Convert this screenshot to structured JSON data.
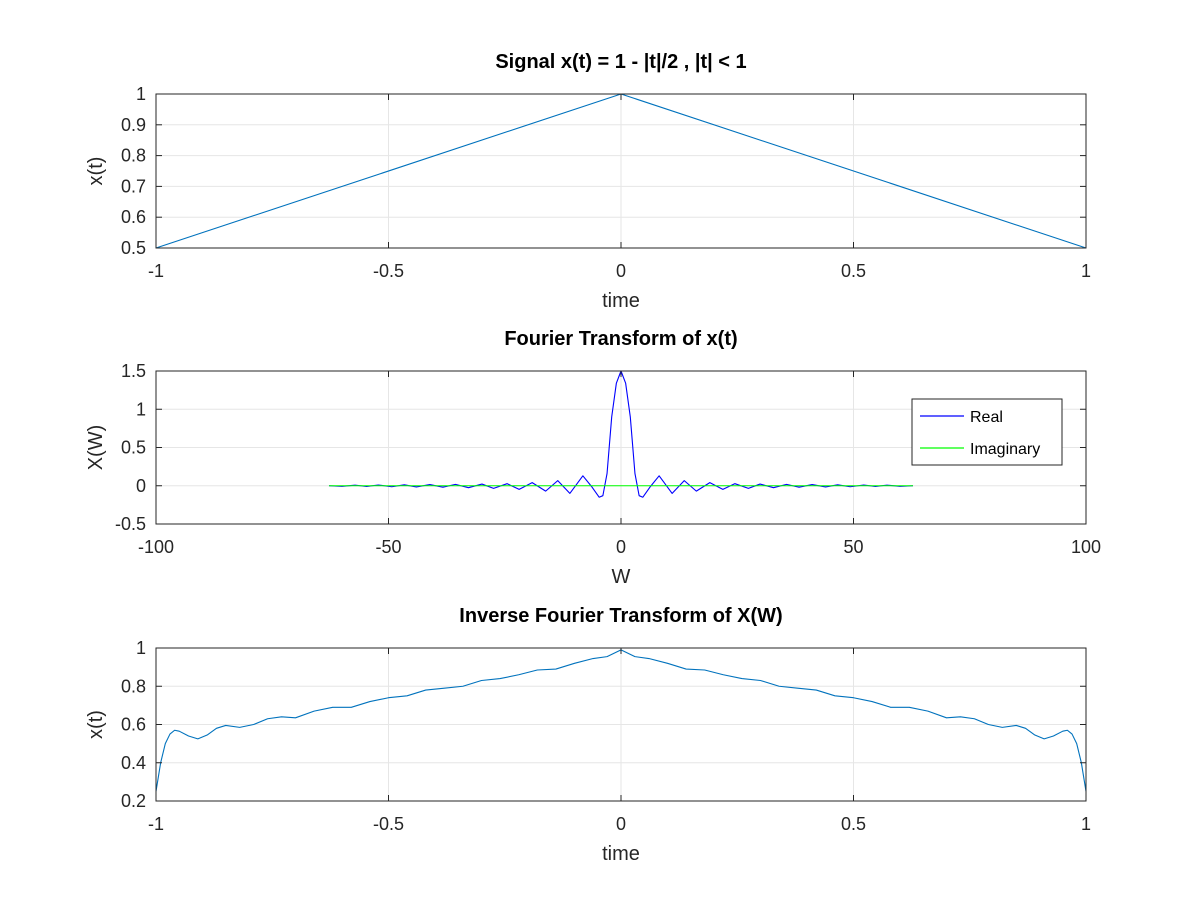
{
  "chart_data": [
    {
      "type": "line",
      "title": "Signal x(t) = 1 - |t|/2 , |t| < 1",
      "xlabel": "time",
      "ylabel": "x(t)",
      "xlim": [
        -1,
        1
      ],
      "ylim": [
        0.5,
        1
      ],
      "xticks": [
        -1,
        -0.5,
        0,
        0.5,
        1
      ],
      "xtick_labels": [
        "-1",
        "-0.5",
        "0",
        "0.5",
        "1"
      ],
      "yticks": [
        0.5,
        0.6,
        0.7,
        0.8,
        0.9,
        1
      ],
      "ytick_labels": [
        "0.5",
        "0.6",
        "0.7",
        "0.8",
        "0.9",
        "1"
      ],
      "grid": true,
      "series": [
        {
          "color": "#0072bd",
          "x": [
            -1,
            0,
            1
          ],
          "y": [
            0.5,
            1,
            0.5
          ]
        }
      ]
    },
    {
      "type": "line",
      "title": "Fourier Transform of x(t)",
      "xlabel": "W",
      "ylabel": "X(W)",
      "xlim": [
        -100,
        100
      ],
      "ylim": [
        -0.5,
        1.5
      ],
      "xticks": [
        -100,
        -50,
        0,
        50,
        100
      ],
      "xtick_labels": [
        "-100",
        "-50",
        "0",
        "50",
        "100"
      ],
      "yticks": [
        -0.5,
        0,
        0.5,
        1,
        1.5
      ],
      "ytick_labels": [
        "-0.5",
        "0",
        "0.5",
        "1",
        "1.5"
      ],
      "grid": true,
      "legend_position": "top-right",
      "series": [
        {
          "name": "Real",
          "color": "#0000ff",
          "x": [
            -62.8,
            -60,
            -57.2,
            -54.7,
            -52.2,
            -49.3,
            -46.6,
            -44,
            -41.1,
            -38.3,
            -35.6,
            -32.8,
            -29.9,
            -27.4,
            -24.5,
            -21.9,
            -19.1,
            -16.2,
            -13.6,
            -11,
            -8.2,
            -6.2,
            -4.7,
            -3.9,
            -3,
            -2,
            -1,
            0,
            1,
            2,
            3,
            3.9,
            4.7,
            6.2,
            8.2,
            11,
            13.6,
            16.2,
            19.1,
            21.9,
            24.5,
            27.4,
            29.9,
            32.8,
            35.6,
            38.3,
            41.1,
            44,
            46.6,
            49.3,
            52.2,
            54.7,
            57.2,
            60,
            62.8
          ],
          "y": [
            0,
            -0.007,
            0.008,
            -0.009,
            0.01,
            -0.013,
            0.012,
            -0.016,
            0.015,
            -0.019,
            0.018,
            -0.025,
            0.022,
            -0.034,
            0.027,
            -0.047,
            0.041,
            -0.07,
            0.067,
            -0.1,
            0.13,
            -0.02,
            -0.15,
            -0.13,
            0.16,
            0.9,
            1.34,
            1.5,
            1.34,
            0.9,
            0.16,
            -0.13,
            -0.15,
            -0.02,
            0.13,
            -0.1,
            0.067,
            -0.07,
            0.041,
            -0.047,
            0.027,
            -0.034,
            0.022,
            -0.025,
            0.018,
            -0.019,
            0.015,
            -0.016,
            0.012,
            -0.013,
            0.01,
            -0.009,
            0.008,
            -0.007,
            0
          ]
        },
        {
          "name": "Imaginary",
          "color": "#00ff00",
          "x": [
            -62.8,
            62.8
          ],
          "y": [
            0,
            0
          ]
        }
      ]
    },
    {
      "type": "line",
      "title": "Inverse Fourier Transform of X(W)",
      "xlabel": "time",
      "ylabel": "x(t)",
      "xlim": [
        -1,
        1
      ],
      "ylim": [
        0.2,
        1
      ],
      "xticks": [
        -1,
        -0.5,
        0,
        0.5,
        1
      ],
      "xtick_labels": [
        "-1",
        "-0.5",
        "0",
        "0.5",
        "1"
      ],
      "yticks": [
        0.2,
        0.4,
        0.6,
        0.8,
        1
      ],
      "ytick_labels": [
        "0.2",
        "0.4",
        "0.6",
        "0.8",
        "1"
      ],
      "grid": true,
      "series": [
        {
          "color": "#0072bd",
          "x": [
            -1,
            -0.99,
            -0.98,
            -0.97,
            -0.96,
            -0.95,
            -0.93,
            -0.91,
            -0.89,
            -0.87,
            -0.85,
            -0.82,
            -0.79,
            -0.76,
            -0.73,
            -0.7,
            -0.66,
            -0.62,
            -0.58,
            -0.54,
            -0.5,
            -0.46,
            -0.42,
            -0.38,
            -0.34,
            -0.3,
            -0.26,
            -0.22,
            -0.18,
            -0.14,
            -0.1,
            -0.06,
            -0.03,
            0,
            0.03,
            0.06,
            0.1,
            0.14,
            0.18,
            0.22,
            0.26,
            0.3,
            0.34,
            0.38,
            0.42,
            0.46,
            0.5,
            0.54,
            0.58,
            0.62,
            0.66,
            0.7,
            0.73,
            0.76,
            0.79,
            0.82,
            0.85,
            0.87,
            0.89,
            0.91,
            0.93,
            0.95,
            0.96,
            0.97,
            0.98,
            0.99,
            1
          ],
          "y": [
            0.25,
            0.4,
            0.5,
            0.55,
            0.57,
            0.565,
            0.54,
            0.525,
            0.545,
            0.58,
            0.595,
            0.585,
            0.6,
            0.63,
            0.64,
            0.635,
            0.67,
            0.69,
            0.69,
            0.72,
            0.74,
            0.75,
            0.78,
            0.79,
            0.8,
            0.83,
            0.84,
            0.86,
            0.885,
            0.89,
            0.92,
            0.945,
            0.955,
            0.99,
            0.955,
            0.945,
            0.92,
            0.89,
            0.885,
            0.86,
            0.84,
            0.83,
            0.8,
            0.79,
            0.78,
            0.75,
            0.74,
            0.72,
            0.69,
            0.69,
            0.67,
            0.635,
            0.64,
            0.63,
            0.6,
            0.585,
            0.595,
            0.58,
            0.545,
            0.525,
            0.54,
            0.565,
            0.57,
            0.55,
            0.5,
            0.4,
            0.25
          ]
        }
      ]
    }
  ]
}
